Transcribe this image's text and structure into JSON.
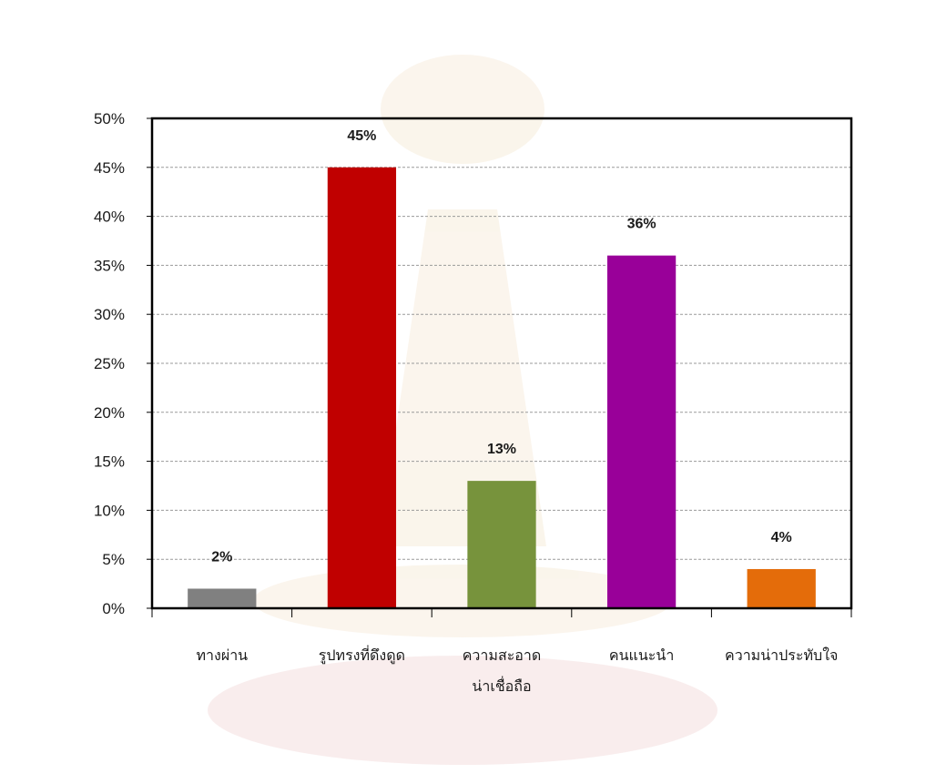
{
  "chart_data": {
    "type": "bar",
    "categories": [
      [
        "ทางผ่าน"
      ],
      [
        "รูปทรงที่ดึงดูด"
      ],
      [
        "ความสะอาด",
        "น่าเชื่อถือ"
      ],
      [
        "คนแนะนำ"
      ],
      [
        "ความน่าประทับใจ"
      ]
    ],
    "values": [
      2,
      45,
      13,
      36,
      4
    ],
    "value_labels": [
      "2%",
      "45%",
      "13%",
      "36%",
      "4%"
    ],
    "colors": [
      "#808080",
      "#c00000",
      "#77933c",
      "#990099",
      "#e46c0a"
    ],
    "ylim": [
      0,
      50
    ],
    "yticks": [
      {
        "value": 0,
        "label": "0%"
      },
      {
        "value": 5,
        "label": "5%"
      },
      {
        "value": 10,
        "label": "10%"
      },
      {
        "value": 15,
        "label": "15%"
      },
      {
        "value": 20,
        "label": "20%"
      },
      {
        "value": 25,
        "label": "25%"
      },
      {
        "value": 30,
        "label": "30%"
      },
      {
        "value": 35,
        "label": "35%"
      },
      {
        "value": 40,
        "label": "40%"
      },
      {
        "value": 45,
        "label": "45%"
      },
      {
        "value": 50,
        "label": "50%"
      }
    ],
    "grid": true,
    "legend": "none",
    "title": "",
    "xlabel": "",
    "ylabel": ""
  }
}
